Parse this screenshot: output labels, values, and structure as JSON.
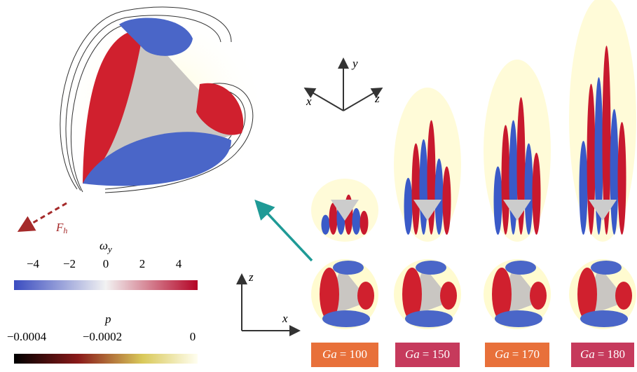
{
  "axes_top": {
    "x": "x",
    "y": "y",
    "z": "z"
  },
  "axes_bottom": {
    "z": "z",
    "x": "x"
  },
  "force": {
    "symbol": "F",
    "sub": "h"
  },
  "vorticity_bar": {
    "symbol": "ω",
    "sub": "y",
    "ticks": [
      "−4",
      "−2",
      "0",
      "2",
      "4"
    ]
  },
  "pressure_bar": {
    "symbol": "p",
    "ticks": [
      "−0.0004",
      "−0.0002",
      "0"
    ]
  },
  "panels": [
    {
      "var": "Ga",
      "eq": "= 100",
      "color": "#e8703a"
    },
    {
      "var": "Ga",
      "eq": "= 150",
      "color": "#c63a5c"
    },
    {
      "var": "Ga",
      "eq": "= 170",
      "color": "#e8703a"
    },
    {
      "var": "Ga",
      "eq": "= 180",
      "color": "#c63a5c"
    }
  ]
}
